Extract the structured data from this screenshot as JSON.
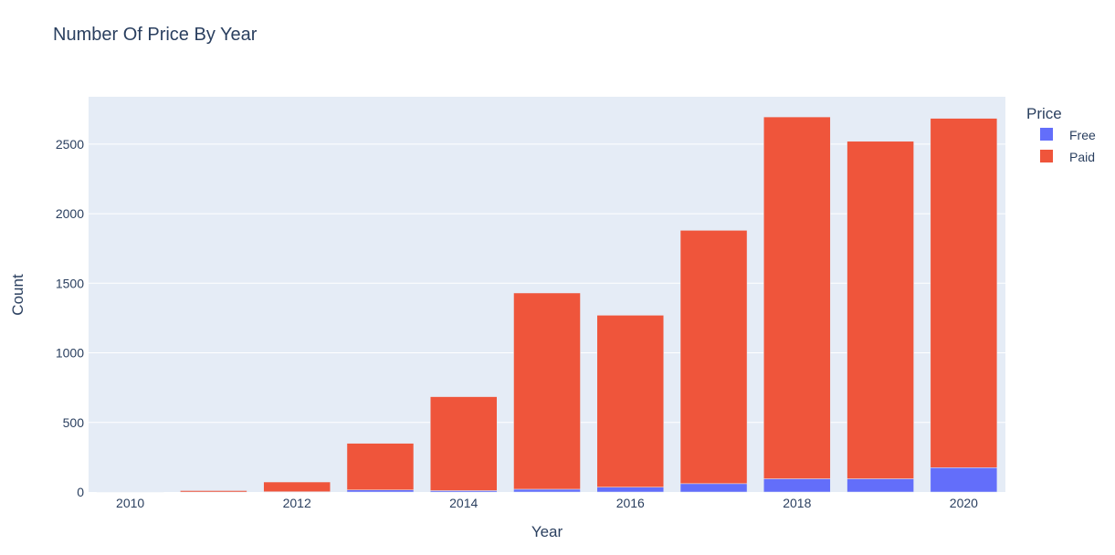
{
  "chart_data": {
    "type": "bar",
    "barmode": "stack",
    "title": "Number Of Price By Year",
    "xlabel": "Year",
    "ylabel": "Count",
    "legend_title": "Price",
    "categories": [
      2010,
      2011,
      2012,
      2013,
      2014,
      2015,
      2016,
      2017,
      2018,
      2019,
      2020
    ],
    "x_ticks": [
      "2010",
      "2012",
      "2014",
      "2016",
      "2018",
      "2020"
    ],
    "y_ticks": [
      "0",
      "500",
      "1000",
      "1500",
      "2000",
      "2500"
    ],
    "ylim": [
      0,
      2840
    ],
    "series": [
      {
        "name": "Free",
        "color": "#636efa",
        "values": [
          0,
          0,
          2,
          15,
          10,
          20,
          35,
          60,
          95,
          95,
          175
        ]
      },
      {
        "name": "Paid",
        "color": "#ef553b",
        "values": [
          2,
          10,
          70,
          335,
          675,
          1410,
          1235,
          1820,
          2600,
          2425,
          2510
        ]
      }
    ],
    "plot_bg": "#e5ecf6",
    "grid": true,
    "legend_position": "top-right"
  }
}
